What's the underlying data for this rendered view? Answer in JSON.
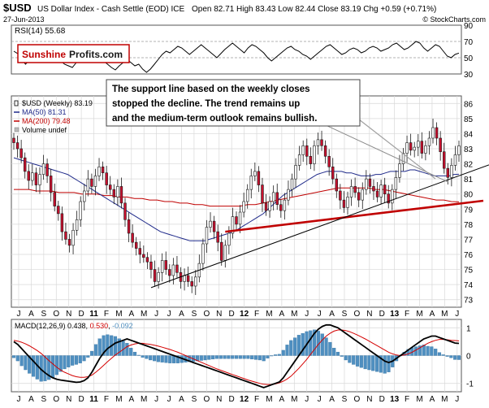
{
  "header": {
    "symbol": "$USD",
    "name": "US Dollar Index - Cash Settle (EOD) ICE",
    "date": "27-Jun-2013",
    "ohlc": "Open 82.71  High 83.43  Low 82.44  Close 83.19  Chg +0.59 (+0.71%)",
    "copyright": "© StockCharts.com"
  },
  "logo": {
    "part1": "Sunshine",
    "part2": "Profits.com"
  },
  "annotation": [
    "The support line based on the weekly closes",
    "stopped the decline. The trend remains up",
    "and the medium-term outlook remains bullish."
  ],
  "colors": {
    "up": "#ffffff",
    "down": "#c8102e",
    "candle_outline": "#1a1a1a",
    "ma50": "#1f2a8a",
    "ma200": "#c00000",
    "support": "#c00000",
    "trendline": "#000000",
    "macd_line": "#000000",
    "macd_signal": "#d40000",
    "hist": "#4f8fc0",
    "grid": "#d8d8d8"
  },
  "chart_data": [
    {
      "type": "line",
      "title": "RSI(14) 55.68",
      "series": [
        {
          "name": "RSI(14)",
          "values": [
            58,
            55,
            48,
            42,
            47,
            52,
            60,
            62,
            66,
            64,
            58,
            50,
            46,
            42,
            40,
            38,
            44,
            50,
            55,
            60,
            62,
            58,
            52,
            46,
            42,
            38,
            35,
            40,
            44,
            48,
            44,
            40,
            42,
            36,
            32,
            36,
            42,
            48,
            54,
            58,
            56,
            60,
            64,
            62,
            58,
            54,
            58,
            62,
            66,
            62,
            58,
            54,
            50,
            55,
            60,
            64,
            68,
            64,
            60,
            56,
            62,
            66,
            64,
            60,
            56,
            50,
            46,
            50,
            54,
            58,
            62,
            64,
            60,
            58,
            54,
            52,
            48,
            52,
            56,
            60,
            64,
            66,
            62,
            58,
            54,
            56,
            60,
            62,
            60,
            56,
            58,
            62,
            64,
            62,
            58,
            60,
            62,
            66,
            68,
            64,
            60,
            62,
            66,
            70,
            68,
            62,
            58,
            62,
            66,
            64,
            58,
            52,
            50,
            54,
            55.68
          ]
        }
      ],
      "ylim": [
        30,
        90
      ],
      "ticks": [
        90,
        70,
        50,
        30
      ]
    },
    {
      "type": "candlestick",
      "title": "$USD (Weekly) 83.19",
      "legend": [
        {
          "name": "$USD (Weekly) 83.19"
        },
        {
          "name": "MA(50) 81.31"
        },
        {
          "name": "MA(200) 79.48"
        },
        {
          "name": "Volume undef"
        }
      ],
      "ylim": [
        72.5,
        86.5
      ],
      "y_ticks": [
        86,
        85,
        84,
        83,
        82,
        81,
        80,
        79,
        78,
        77,
        76,
        75,
        74,
        73
      ],
      "x_labels": [
        "J",
        "A",
        "S",
        "O",
        "N",
        "D",
        "11",
        "F",
        "M",
        "A",
        "M",
        "J",
        "J",
        "A",
        "S",
        "O",
        "N",
        "D",
        "12",
        "F",
        "M",
        "A",
        "M",
        "J",
        "J",
        "A",
        "S",
        "O",
        "N",
        "D",
        "13",
        "F",
        "M",
        "A",
        "M",
        "J"
      ],
      "close": [
        83.4,
        83.0,
        82.4,
        81.5,
        80.9,
        81.4,
        80.6,
        81.3,
        82.0,
        81.2,
        80.1,
        79.2,
        78.7,
        77.5,
        77.0,
        76.6,
        77.6,
        78.3,
        79.5,
        80.2,
        81.0,
        80.5,
        81.2,
        81.8,
        81.4,
        80.6,
        80.3,
        79.8,
        80.5,
        79.4,
        78.3,
        77.4,
        76.8,
        76.4,
        76.0,
        75.8,
        75.5,
        75.0,
        74.2,
        74.8,
        75.6,
        75.0,
        74.6,
        75.3,
        74.8,
        74.2,
        74.6,
        74.2,
        73.9,
        74.5,
        75.4,
        76.7,
        77.8,
        78.2,
        77.5,
        76.8,
        75.6,
        76.6,
        77.4,
        78.5,
        78.0,
        78.8,
        79.5,
        80.3,
        81.2,
        81.5,
        80.6,
        79.4,
        78.9,
        79.5,
        80.1,
        79.3,
        78.9,
        79.6,
        80.3,
        81.0,
        81.9,
        82.6,
        83.2,
        82.5,
        82.0,
        83.2,
        83.6,
        83.2,
        82.5,
        81.8,
        81.0,
        80.2,
        79.6,
        79.1,
        79.8,
        80.5,
        80.1,
        79.6,
        80.3,
        81.0,
        80.5,
        80.2,
        79.8,
        80.6,
        80.0,
        79.4,
        80.3,
        81.1,
        82.0,
        82.7,
        83.4,
        82.9,
        83.1,
        83.5,
        82.7,
        83.2,
        83.7,
        84.4,
        83.7,
        82.8,
        81.7,
        81.1,
        81.9,
        82.6,
        83.19
      ],
      "ma50": [
        82.4,
        82.3,
        82.2,
        82.1,
        82.0,
        81.9,
        81.8,
        81.7,
        81.6,
        81.5,
        81.4,
        81.3,
        81.1,
        80.9,
        80.7,
        80.5,
        80.3,
        80.1,
        79.9,
        79.7,
        79.5,
        79.3,
        79.1,
        78.9,
        78.7,
        78.5,
        78.3,
        78.1,
        77.9,
        77.7,
        77.5,
        77.4,
        77.3,
        77.2,
        77.1,
        77.0,
        76.9,
        76.9,
        76.9,
        76.9,
        77.0,
        77.1,
        77.2,
        77.3,
        77.4,
        77.5,
        77.7,
        77.9,
        78.1,
        78.3,
        78.5,
        78.7,
        79.0,
        79.3,
        79.6,
        79.9,
        80.1,
        80.3,
        80.5,
        80.7,
        80.9,
        81.1,
        81.3,
        81.4,
        81.5,
        81.5,
        81.5,
        81.5,
        81.4,
        81.4,
        81.3,
        81.2,
        81.2,
        81.2,
        81.3,
        81.3,
        81.4,
        81.5,
        81.5,
        81.5,
        81.5,
        81.6,
        81.6,
        81.5,
        81.4,
        81.3,
        81.2,
        81.2,
        81.2,
        81.2,
        81.3,
        81.31
      ],
      "ma200": [
        80.3,
        80.3,
        80.3,
        80.2,
        80.2,
        80.2,
        80.1,
        80.1,
        80.1,
        80.0,
        80.0,
        80.0,
        79.9,
        79.9,
        79.8,
        79.8,
        79.7,
        79.7,
        79.6,
        79.6,
        79.5,
        79.5,
        79.4,
        79.4,
        79.3,
        79.3,
        79.2,
        79.2,
        79.2,
        79.2,
        79.2,
        79.3,
        79.3,
        79.4,
        79.5,
        79.6,
        79.7,
        79.8,
        79.9,
        80.0,
        80.1,
        80.2,
        80.3,
        80.4,
        80.4,
        80.4,
        80.4,
        80.4,
        80.3,
        80.3,
        80.2,
        80.1,
        80.0,
        79.9,
        79.8,
        79.7,
        79.6,
        79.6,
        79.5,
        79.48
      ],
      "support_line": [
        [
          57,
          77.5
        ],
        [
          123,
          79.5
        ]
      ],
      "trend_lines": [
        [
          [
            37,
            73.8
          ],
          [
            123,
            81.5
          ]
        ],
        [
          [
            82,
            84.8
          ],
          [
            117,
            80.8
          ]
        ]
      ]
    },
    {
      "type": "line",
      "title": "MACD(12,26,9) 0.438, 0.530, -0.092",
      "series": [
        {
          "name": "MACD(12,26,9) 0.438",
          "values": [
            0.5,
            0.4,
            0.25,
            0.1,
            -0.05,
            -0.2,
            -0.35,
            -0.5,
            -0.62,
            -0.72,
            -0.8,
            -0.85,
            -0.88,
            -0.9,
            -0.92,
            -0.94,
            -0.96,
            -0.95,
            -0.9,
            -0.8,
            -0.6,
            -0.35,
            -0.1,
            0.1,
            0.25,
            0.35,
            0.45,
            0.5,
            0.55,
            0.6,
            0.55,
            0.5,
            0.45,
            0.4,
            0.35,
            0.3,
            0.25,
            0.2,
            0.15,
            0.1,
            0.05,
            0,
            -0.05,
            -0.1,
            -0.15,
            -0.2,
            -0.25,
            -0.3,
            -0.35,
            -0.4,
            -0.45,
            -0.5,
            -0.55,
            -0.6,
            -0.65,
            -0.7,
            -0.75,
            -0.8,
            -0.85,
            -0.9,
            -0.95,
            -1,
            -1.05,
            -1.1,
            -1.15,
            -1.1,
            -1.05,
            -1,
            -0.95,
            -0.8,
            -0.6,
            -0.4,
            -0.2,
            0,
            0.2,
            0.4,
            0.6,
            0.8,
            0.95,
            1.05,
            1.1,
            1.1,
            1.05,
            1,
            0.9,
            0.8,
            0.7,
            0.6,
            0.5,
            0.4,
            0.3,
            0.2,
            0.1,
            0,
            -0.1,
            -0.2,
            -0.25,
            -0.2,
            -0.1,
            0,
            0.1,
            0.2,
            0.3,
            0.4,
            0.5,
            0.6,
            0.65,
            0.7,
            0.7,
            0.65,
            0.6,
            0.55,
            0.5,
            0.45,
            0.438
          ]
        },
        {
          "name": "0.530",
          "values": [
            0.55,
            0.52,
            0.48,
            0.42,
            0.35,
            0.27,
            0.18,
            0.08,
            -0.05,
            -0.18,
            -0.3,
            -0.42,
            -0.52,
            -0.6,
            -0.66,
            -0.72,
            -0.76,
            -0.78,
            -0.78,
            -0.76,
            -0.7,
            -0.6,
            -0.48,
            -0.35,
            -0.22,
            -0.1,
            0.02,
            0.12,
            0.22,
            0.32,
            0.38,
            0.42,
            0.44,
            0.44,
            0.42,
            0.4,
            0.37,
            0.34,
            0.3,
            0.26,
            0.22,
            0.17,
            0.12,
            0.06,
            0,
            -0.06,
            -0.12,
            -0.18,
            -0.24,
            -0.3,
            -0.36,
            -0.42,
            -0.48,
            -0.53,
            -0.58,
            -0.63,
            -0.68,
            -0.73,
            -0.78,
            -0.83,
            -0.88,
            -0.92,
            -0.96,
            -1,
            -1.03,
            -1.04,
            -1.04,
            -1.02,
            -0.98,
            -0.92,
            -0.84,
            -0.74,
            -0.6,
            -0.46,
            -0.3,
            -0.14,
            0.04,
            0.22,
            0.4,
            0.56,
            0.7,
            0.8,
            0.88,
            0.92,
            0.92,
            0.9,
            0.86,
            0.8,
            0.74,
            0.67,
            0.6,
            0.52,
            0.44,
            0.36,
            0.28,
            0.2,
            0.12,
            0.06,
            0.02,
            0,
            0.02,
            0.06,
            0.12,
            0.2,
            0.28,
            0.36,
            0.44,
            0.5,
            0.55,
            0.58,
            0.58,
            0.57,
            0.55,
            0.54,
            0.53
          ]
        }
      ],
      "histogram_name": "-0.092",
      "ylim": [
        -1.3,
        1.3
      ],
      "ticks": [
        1,
        0,
        -1
      ]
    }
  ]
}
